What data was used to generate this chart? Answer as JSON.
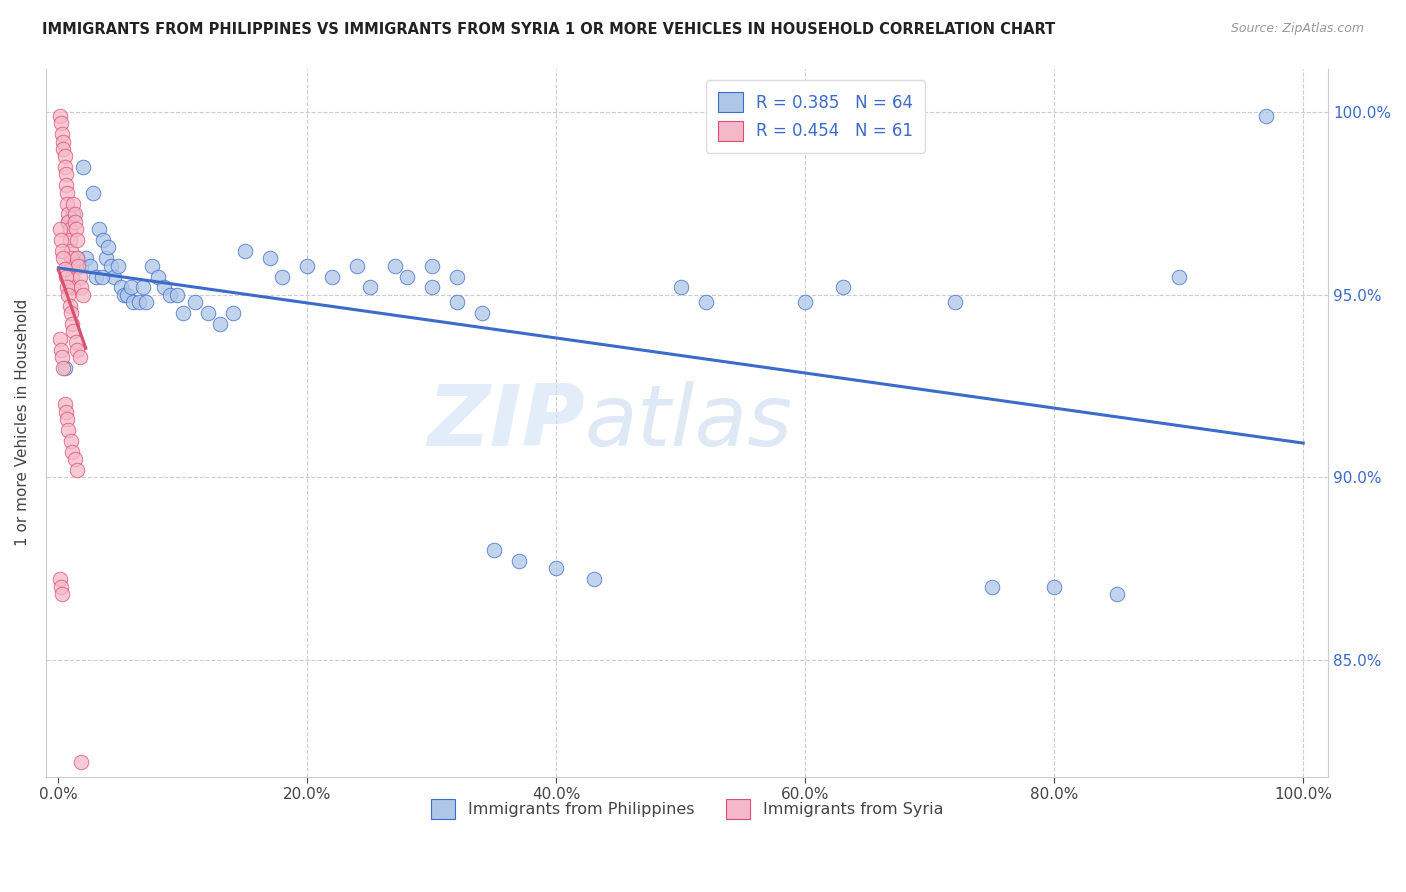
{
  "title": "IMMIGRANTS FROM PHILIPPINES VS IMMIGRANTS FROM SYRIA 1 OR MORE VEHICLES IN HOUSEHOLD CORRELATION CHART",
  "source": "Source: ZipAtlas.com",
  "ylabel": "1 or more Vehicles in Household",
  "yticks": [
    0.85,
    0.9,
    0.95,
    1.0
  ],
  "ytick_labels": [
    "85.0%",
    "90.0%",
    "95.0%",
    "100.0%"
  ],
  "xticks": [
    0.0,
    0.2,
    0.4,
    0.6,
    0.8,
    1.0
  ],
  "xtick_labels": [
    "0.0%",
    "20.0%",
    "40.0%",
    "60.0%",
    "80.0%",
    "100.0%"
  ],
  "xlim": [
    -0.01,
    1.02
  ],
  "ylim": [
    0.818,
    1.012
  ],
  "r_philippines": 0.385,
  "n_philippines": 64,
  "r_syria": 0.454,
  "n_syria": 61,
  "color_philippines": "#aec6e8",
  "color_syria": "#f5b8c8",
  "line_color_philippines": "#3c6bc9",
  "line_color_syria": "#d94f6e",
  "legend_label_philippines": "Immigrants from Philippines",
  "legend_label_syria": "Immigrants from Syria",
  "watermark_zip": "ZIP",
  "watermark_atlas": "atlas",
  "philippines_x": [
    0.005,
    0.008,
    0.012,
    0.015,
    0.018,
    0.02,
    0.022,
    0.025,
    0.028,
    0.03,
    0.033,
    0.036,
    0.038,
    0.04,
    0.042,
    0.045,
    0.048,
    0.05,
    0.053,
    0.055,
    0.058,
    0.06,
    0.065,
    0.068,
    0.07,
    0.075,
    0.08,
    0.085,
    0.09,
    0.095,
    0.1,
    0.11,
    0.12,
    0.13,
    0.14,
    0.15,
    0.17,
    0.18,
    0.2,
    0.22,
    0.24,
    0.25,
    0.27,
    0.28,
    0.3,
    0.32,
    0.35,
    0.37,
    0.4,
    0.43,
    0.3,
    0.035,
    0.32,
    0.34,
    0.5,
    0.52,
    0.6,
    0.63,
    0.72,
    0.75,
    0.8,
    0.85,
    0.9,
    0.97
  ],
  "philippines_y": [
    0.93,
    0.97,
    0.972,
    0.96,
    0.958,
    0.985,
    0.96,
    0.958,
    0.978,
    0.955,
    0.968,
    0.965,
    0.96,
    0.963,
    0.958,
    0.955,
    0.958,
    0.952,
    0.95,
    0.95,
    0.952,
    0.948,
    0.948,
    0.952,
    0.948,
    0.958,
    0.955,
    0.952,
    0.95,
    0.95,
    0.945,
    0.948,
    0.945,
    0.942,
    0.945,
    0.962,
    0.96,
    0.955,
    0.958,
    0.955,
    0.958,
    0.952,
    0.958,
    0.955,
    0.958,
    0.955,
    0.88,
    0.877,
    0.875,
    0.872,
    0.952,
    0.955,
    0.948,
    0.945,
    0.952,
    0.948,
    0.948,
    0.952,
    0.948,
    0.87,
    0.87,
    0.868,
    0.955,
    0.999
  ],
  "syria_x": [
    0.001,
    0.002,
    0.003,
    0.004,
    0.004,
    0.005,
    0.005,
    0.006,
    0.006,
    0.007,
    0.007,
    0.008,
    0.008,
    0.009,
    0.009,
    0.01,
    0.01,
    0.011,
    0.011,
    0.012,
    0.012,
    0.013,
    0.013,
    0.014,
    0.015,
    0.015,
    0.016,
    0.017,
    0.018,
    0.02,
    0.001,
    0.002,
    0.003,
    0.004,
    0.005,
    0.006,
    0.007,
    0.008,
    0.009,
    0.01,
    0.011,
    0.012,
    0.014,
    0.015,
    0.017,
    0.001,
    0.002,
    0.003,
    0.004,
    0.005,
    0.006,
    0.007,
    0.008,
    0.01,
    0.011,
    0.013,
    0.015,
    0.001,
    0.002,
    0.003,
    0.018
  ],
  "syria_y": [
    0.999,
    0.997,
    0.994,
    0.992,
    0.99,
    0.988,
    0.985,
    0.983,
    0.98,
    0.978,
    0.975,
    0.972,
    0.97,
    0.968,
    0.965,
    0.962,
    0.96,
    0.958,
    0.955,
    0.952,
    0.975,
    0.972,
    0.97,
    0.968,
    0.965,
    0.96,
    0.958,
    0.955,
    0.952,
    0.95,
    0.968,
    0.965,
    0.962,
    0.96,
    0.957,
    0.955,
    0.952,
    0.95,
    0.947,
    0.945,
    0.942,
    0.94,
    0.937,
    0.935,
    0.933,
    0.938,
    0.935,
    0.933,
    0.93,
    0.92,
    0.918,
    0.916,
    0.913,
    0.91,
    0.907,
    0.905,
    0.902,
    0.872,
    0.87,
    0.868,
    0.822
  ]
}
